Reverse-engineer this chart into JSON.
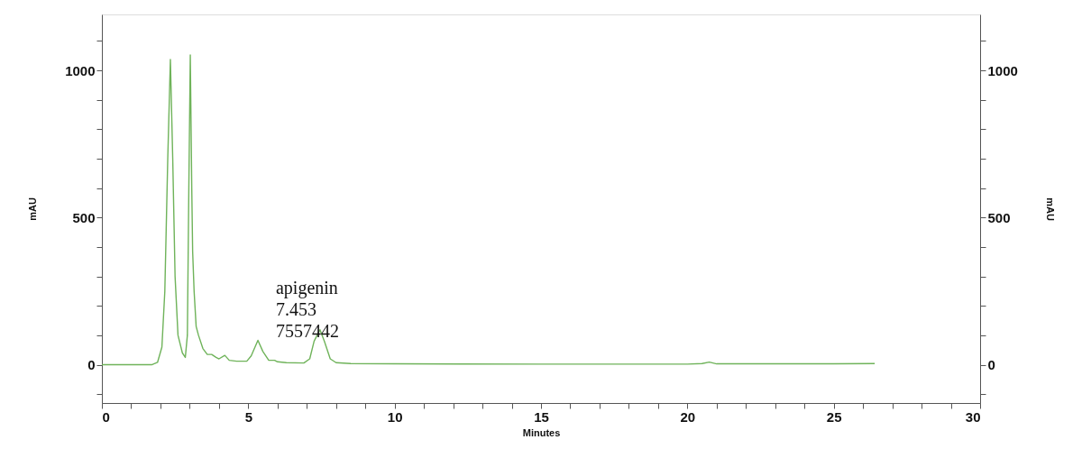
{
  "chart_data": {
    "type": "line",
    "xlabel": "Minutes",
    "ylabel": "mAU",
    "y2label": "mAU",
    "x": [
      0,
      1.7,
      1.9,
      2.05,
      2.15,
      2.25,
      2.34,
      2.42,
      2.5,
      2.6,
      2.75,
      2.85,
      2.92,
      2.97,
      3.02,
      3.07,
      3.1,
      3.15,
      3.22,
      3.3,
      3.45,
      3.6,
      3.75,
      3.9,
      4.0,
      4.2,
      4.35,
      4.6,
      4.95,
      5.1,
      5.33,
      5.5,
      5.7,
      5.9,
      6.0,
      6.3,
      6.9,
      7.1,
      7.25,
      7.45,
      7.6,
      7.8,
      8.0,
      8.5,
      10,
      15,
      20,
      20.5,
      20.75,
      21,
      25,
      26.4
    ],
    "series": [
      {
        "color": "#6fb35a",
        "values": [
          0,
          0,
          8,
          60,
          250,
          700,
          1037,
          700,
          300,
          100,
          40,
          25,
          100,
          600,
          1052,
          600,
          385,
          250,
          130,
          100,
          55,
          35,
          35,
          25,
          20,
          32,
          15,
          12,
          12,
          30,
          83,
          45,
          15,
          15,
          10,
          7,
          6,
          20,
          80,
          119,
          80,
          20,
          7,
          4,
          3,
          2,
          2,
          4,
          9,
          3,
          3,
          4
        ]
      }
    ],
    "xlim": [
      0,
      30
    ],
    "xticks": [
      0,
      {
        "value": 1,
        "label": null
      },
      {
        "value": 2,
        "label": null
      },
      {
        "value": 3,
        "label": null
      },
      {
        "value": 4,
        "label": null
      },
      5,
      {
        "value": 6,
        "label": null
      },
      {
        "value": 7,
        "label": null
      },
      {
        "value": 8,
        "label": null
      },
      {
        "value": 9,
        "label": null
      },
      10,
      {
        "value": 11,
        "label": null
      },
      {
        "value": 12,
        "label": null
      },
      {
        "value": 13,
        "label": null
      },
      {
        "value": 14,
        "label": null
      },
      15,
      {
        "value": 16,
        "label": null
      },
      {
        "value": 17,
        "label": null
      },
      {
        "value": 18,
        "label": null
      },
      {
        "value": 19,
        "label": null
      },
      20,
      {
        "value": 21,
        "label": null
      },
      {
        "value": 22,
        "label": null
      },
      {
        "value": 23,
        "label": null
      },
      {
        "value": 24,
        "label": null
      },
      25,
      {
        "value": 26,
        "label": null
      },
      {
        "value": 27,
        "label": null
      },
      {
        "value": 28,
        "label": null
      },
      {
        "value": 29,
        "label": null
      },
      30
    ],
    "ylim": [
      -130,
      1190
    ],
    "yticks": [
      {
        "value": -100,
        "label": null
      },
      0,
      {
        "value": 100,
        "label": null
      },
      {
        "value": 200,
        "label": null
      },
      {
        "value": 300,
        "label": null
      },
      {
        "value": 400,
        "label": null
      },
      500,
      {
        "value": 600,
        "label": null
      },
      {
        "value": 700,
        "label": null
      },
      {
        "value": 800,
        "label": null
      },
      {
        "value": 900,
        "label": null
      },
      1000,
      {
        "value": 1100,
        "label": null
      }
    ],
    "y2lim": [
      -130,
      1190
    ],
    "y2ticks": [
      {
        "value": -100,
        "label": null
      },
      0,
      {
        "value": 100,
        "label": null
      },
      {
        "value": 200,
        "label": null
      },
      {
        "value": 300,
        "label": null
      },
      {
        "value": 400,
        "label": null
      },
      500,
      {
        "value": 600,
        "label": null
      },
      {
        "value": 700,
        "label": null
      },
      {
        "value": 800,
        "label": null
      },
      {
        "value": 900,
        "label": null
      },
      1000,
      {
        "value": 1100,
        "label": null
      }
    ],
    "annotations": [
      {
        "text": "apigenin\n7.453\n7557442",
        "x": 7.453,
        "y": 119
      }
    ],
    "grid": false,
    "marker": "none",
    "line_style": "solid"
  }
}
